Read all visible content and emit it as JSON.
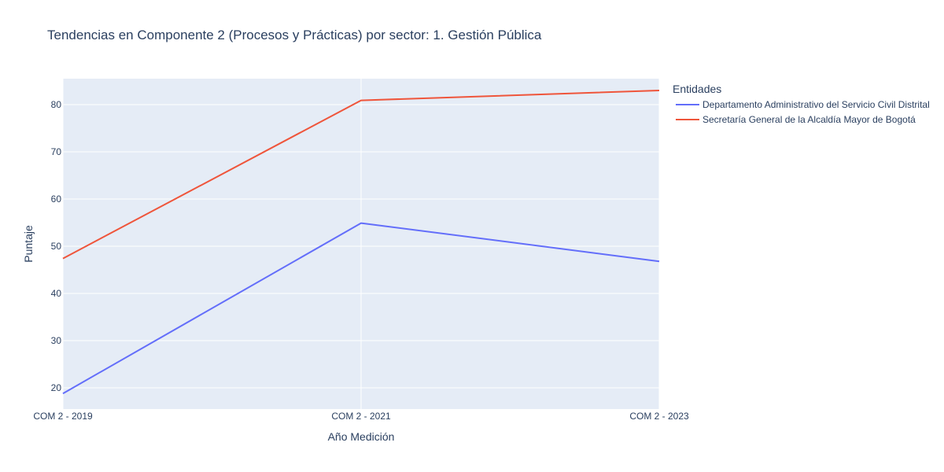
{
  "chart_data": {
    "type": "line",
    "title": "Tendencias en Componente 2 (Procesos y Prácticas) por sector: 1. Gestión Pública",
    "xlabel": "Año Medición",
    "ylabel": "Puntaje",
    "categories": [
      "COM 2 - 2019",
      "COM 2 - 2021",
      "COM 2 - 2023"
    ],
    "ylim": [
      15.5,
      85.5
    ],
    "yticks": [
      20,
      30,
      40,
      50,
      60,
      70,
      80
    ],
    "grid": true,
    "legend_title": "Entidades",
    "legend_position": "right",
    "series": [
      {
        "name": "Departamento Administrativo del Servicio Civil Distrital",
        "color": "#636efa",
        "values": [
          18.8,
          54.9,
          46.8
        ]
      },
      {
        "name": "Secretaría General de la Alcaldía Mayor de Bogotá",
        "color": "#ef553b",
        "values": [
          47.4,
          80.9,
          83.0
        ]
      }
    ]
  },
  "colors": {
    "plot_bg": "#e5ecf6",
    "grid": "#ffffff",
    "text": "#2a3f5f"
  }
}
